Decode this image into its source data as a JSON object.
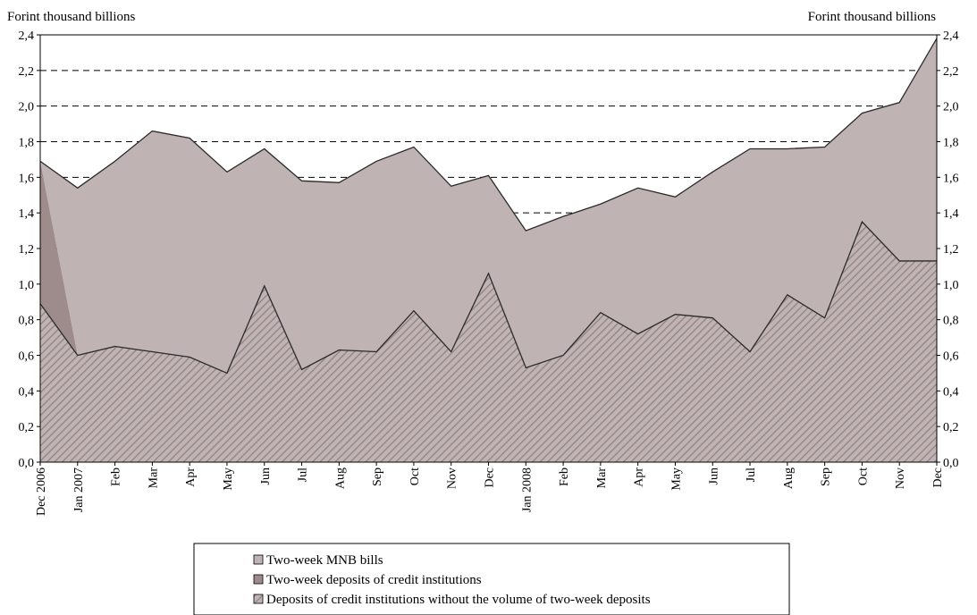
{
  "chart_data": {
    "type": "area",
    "left_axis_label": "Forint thousand billions",
    "right_axis_label": "Forint thousand billions",
    "categories": [
      "Dec 2006",
      "Jan 2007",
      "Feb",
      "Mar",
      "Apr",
      "May",
      "Jun",
      "Jul",
      "Aug",
      "Sep",
      "Oct",
      "Nov",
      "Dec",
      "Jan 2008",
      "Feb",
      "Mar",
      "Apr",
      "May",
      "Jun",
      "Jul",
      "Aug",
      "Sep",
      "Oct",
      "Nov",
      "Dec"
    ],
    "yticks": [
      "0,0",
      "0,2",
      "0,4",
      "0,6",
      "0,8",
      "1,0",
      "1,2",
      "1,4",
      "1,6",
      "1,8",
      "2,0",
      "2,2",
      "2,4"
    ],
    "ylim": [
      0,
      2.4
    ],
    "grid": "dashed horizontal",
    "legend_position": "bottom",
    "stacked": true,
    "series": [
      {
        "name": "Deposits of credit institutions without the volume of two-week deposits",
        "color": "#c0b3b3",
        "pattern": "diagonal hatch",
        "values": [
          0.89,
          0.6,
          0.65,
          0.62,
          0.59,
          0.5,
          0.99,
          0.52,
          0.63,
          0.62,
          0.85,
          0.62,
          1.06,
          0.53,
          0.6,
          0.84,
          0.72,
          0.83,
          0.81,
          0.62,
          0.94,
          0.81,
          1.35,
          1.13,
          1.13
        ]
      },
      {
        "name": "Two-week deposits of credit institutions",
        "color": "#9e8c8c",
        "values": [
          0.8,
          0,
          0,
          0,
          0,
          0,
          0,
          0,
          0,
          0,
          0,
          0,
          0,
          0,
          0,
          0,
          0,
          0,
          0,
          0,
          0,
          0,
          0,
          0,
          0
        ]
      },
      {
        "name": "Two-week MNB bills",
        "color": "#c0b3b3",
        "values": [
          0,
          0.94,
          1.04,
          1.24,
          1.23,
          1.13,
          0.77,
          1.06,
          0.94,
          1.07,
          0.92,
          0.93,
          0.55,
          0.77,
          0.78,
          0.61,
          0.82,
          0.66,
          0.82,
          1.14,
          0.82,
          0.96,
          0.61,
          0.89,
          1.25
        ]
      }
    ],
    "legend": [
      {
        "label": "Two-week MNB bills",
        "color": "#c0b3b3",
        "pattern": "solid"
      },
      {
        "label": "Two-week deposits of credit institutions",
        "color": "#9e8c8c",
        "pattern": "solid"
      },
      {
        "label": "Deposits of credit institutions without the volume of two-week deposits",
        "color": "#c0b3b3",
        "pattern": "hatch"
      }
    ]
  }
}
